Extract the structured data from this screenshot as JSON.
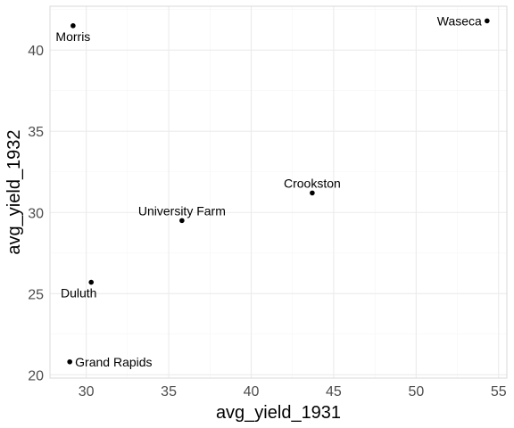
{
  "chart_data": {
    "type": "scatter",
    "title": "",
    "xlabel": "avg_yield_1931",
    "ylabel": "avg_yield_1932",
    "xlim": [
      27.8,
      55.5
    ],
    "ylim": [
      19.8,
      42.7
    ],
    "x_ticks": [
      30,
      35,
      40,
      45,
      50,
      55
    ],
    "y_ticks": [
      20,
      25,
      30,
      35,
      40
    ],
    "grid": true,
    "points": [
      {
        "label": "Morris",
        "x": 29.2,
        "y": 41.5,
        "label_pos": "below"
      },
      {
        "label": "Waseca",
        "x": 54.3,
        "y": 41.8,
        "label_pos": "left"
      },
      {
        "label": "Crookston",
        "x": 43.7,
        "y": 31.2,
        "label_pos": "above"
      },
      {
        "label": "University Farm",
        "x": 35.8,
        "y": 29.5,
        "label_pos": "above"
      },
      {
        "label": "Duluth",
        "x": 30.3,
        "y": 25.7,
        "label_pos": "below-left"
      },
      {
        "label": "Grand Rapids",
        "x": 29.0,
        "y": 20.8,
        "label_pos": "right"
      }
    ]
  }
}
